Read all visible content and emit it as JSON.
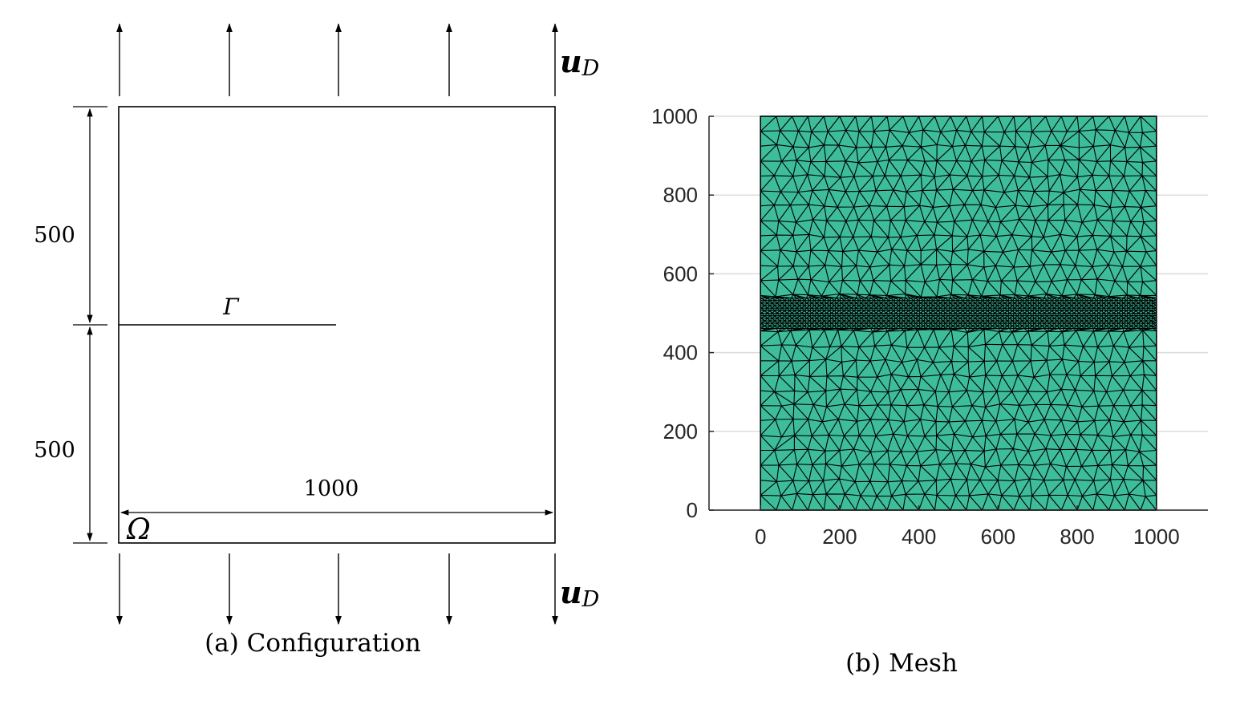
{
  "configuration": {
    "caption": "(a)  Configuration",
    "dim_upper": "500",
    "dim_lower": "500",
    "dim_width": "1000",
    "crack_label": "Γ",
    "domain_label": "Ω",
    "load_symbol": "u",
    "load_subscript": "D"
  },
  "mesh": {
    "caption": "(b)  Mesh",
    "fill_color": "#3dbd9a",
    "edge_color": "#000000",
    "chart_data": {
      "type": "mesh",
      "x_ticks": [
        "0",
        "200",
        "400",
        "600",
        "800",
        "1000"
      ],
      "y_ticks": [
        "0",
        "200",
        "400",
        "600",
        "800",
        "1000"
      ],
      "xlim": [
        -130,
        1130
      ],
      "ylim": [
        0,
        1000
      ],
      "domain": {
        "x": [
          0,
          1000
        ],
        "y": [
          0,
          1000
        ]
      },
      "refined_band": [
        455,
        545
      ],
      "grid": "horizontal"
    }
  }
}
